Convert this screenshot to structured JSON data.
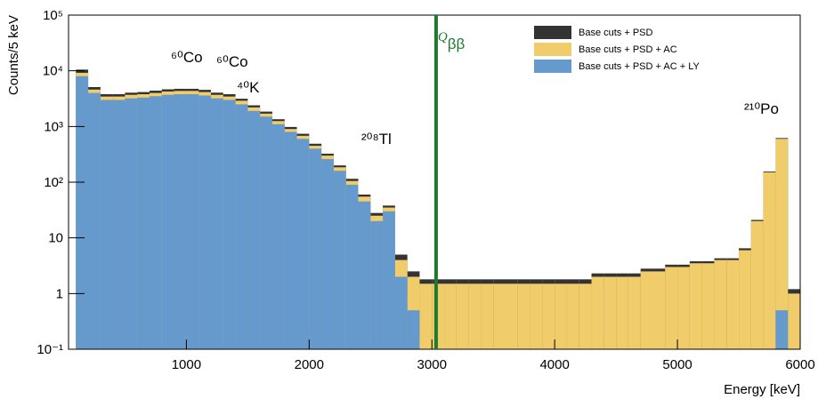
{
  "chart_data": {
    "type": "histogram",
    "y_label": "Counts/5 keV",
    "x_label": "Energy [keV]",
    "bins": [
      100,
      200,
      300,
      400,
      500,
      600,
      700,
      800,
      900,
      1000,
      1100,
      1200,
      1300,
      1400,
      1500,
      1600,
      1700,
      1800,
      1900,
      2000,
      2100,
      2200,
      2300,
      2400,
      2500,
      2600,
      2700,
      2800,
      2900,
      3000,
      3100,
      3200,
      3300,
      3400,
      3500,
      3600,
      3700,
      3800,
      3900,
      4000,
      4100,
      4200,
      4300,
      4400,
      4500,
      4600,
      4700,
      4800,
      4900,
      5000,
      5100,
      5200,
      5300,
      5400,
      5500,
      5600,
      5700,
      5800,
      5900,
      6000
    ],
    "series": [
      {
        "name": "Base cuts + PSD",
        "color": "#333333",
        "values": [
          10500,
          5100,
          3800,
          3800,
          4050,
          4150,
          4400,
          4650,
          4750,
          4750,
          4550,
          4050,
          3800,
          3150,
          2400,
          1850,
          1350,
          980,
          740,
          490,
          325,
          200,
          115,
          60,
          28,
          38,
          5,
          2.5,
          1.8,
          1.8,
          1.8,
          1.8,
          1.8,
          1.8,
          1.8,
          1.8,
          1.8,
          1.8,
          1.8,
          1.8,
          1.8,
          1.8,
          2.3,
          2.3,
          2.3,
          2.3,
          2.8,
          2.8,
          3.3,
          3.3,
          3.8,
          3.8,
          4.3,
          4.3,
          6.5,
          21,
          155,
          620,
          1.2
        ]
      },
      {
        "name": "Base cuts + PSD + AC",
        "color": "#f0cc6a",
        "values": [
          9200,
          4600,
          3450,
          3450,
          3700,
          3800,
          4000,
          4250,
          4350,
          4350,
          4150,
          3700,
          3450,
          2900,
          2200,
          1700,
          1250,
          900,
          680,
          450,
          300,
          185,
          105,
          55,
          25,
          35,
          4,
          2,
          1.5,
          1.5,
          1.5,
          1.5,
          1.5,
          1.5,
          1.5,
          1.5,
          1.5,
          1.5,
          1.5,
          1.5,
          1.5,
          1.5,
          2,
          2,
          2,
          2,
          2.5,
          2.5,
          3,
          3,
          3.5,
          3.5,
          4,
          4,
          6,
          20,
          150,
          600,
          1
        ]
      },
      {
        "name": "Base cuts + PSD + AC + LY",
        "color": "#6699cc",
        "values": [
          8000,
          4000,
          3000,
          3000,
          3200,
          3300,
          3500,
          3700,
          3800,
          3800,
          3600,
          3200,
          3000,
          2500,
          1900,
          1500,
          1100,
          800,
          600,
          400,
          260,
          160,
          90,
          45,
          20,
          30,
          2,
          0.5,
          0,
          0,
          0,
          0,
          0,
          0,
          0,
          0,
          0,
          0,
          0,
          0,
          0,
          0,
          0,
          0,
          0,
          0,
          0,
          0,
          0,
          0,
          0,
          0,
          0,
          0,
          0,
          0,
          0,
          0.5,
          0
        ]
      }
    ],
    "xlim": [
      40,
      6000
    ],
    "xticks": [
      1000,
      2000,
      3000,
      4000,
      5000,
      6000
    ],
    "ylim": [
      0.1,
      100000
    ],
    "log_y": true,
    "yticks": [
      {
        "value": 0.1,
        "label": "10⁻¹"
      },
      1,
      10,
      {
        "value": 100,
        "label": "10²"
      },
      {
        "value": 1000,
        "label": "10³"
      },
      {
        "value": 10000,
        "label": "10⁴"
      },
      {
        "value": 100000,
        "label": "10⁵"
      }
    ],
    "q_line": {
      "value": 3034,
      "color": "#1f7a30",
      "symbol": "Q",
      "subscript": "ββ"
    },
    "annotations": [
      "⁶⁰Co",
      "⁶⁰Co",
      "⁴⁰K",
      "²⁰⁸Tl",
      "²¹⁰Po"
    ],
    "legend": "top-right"
  }
}
